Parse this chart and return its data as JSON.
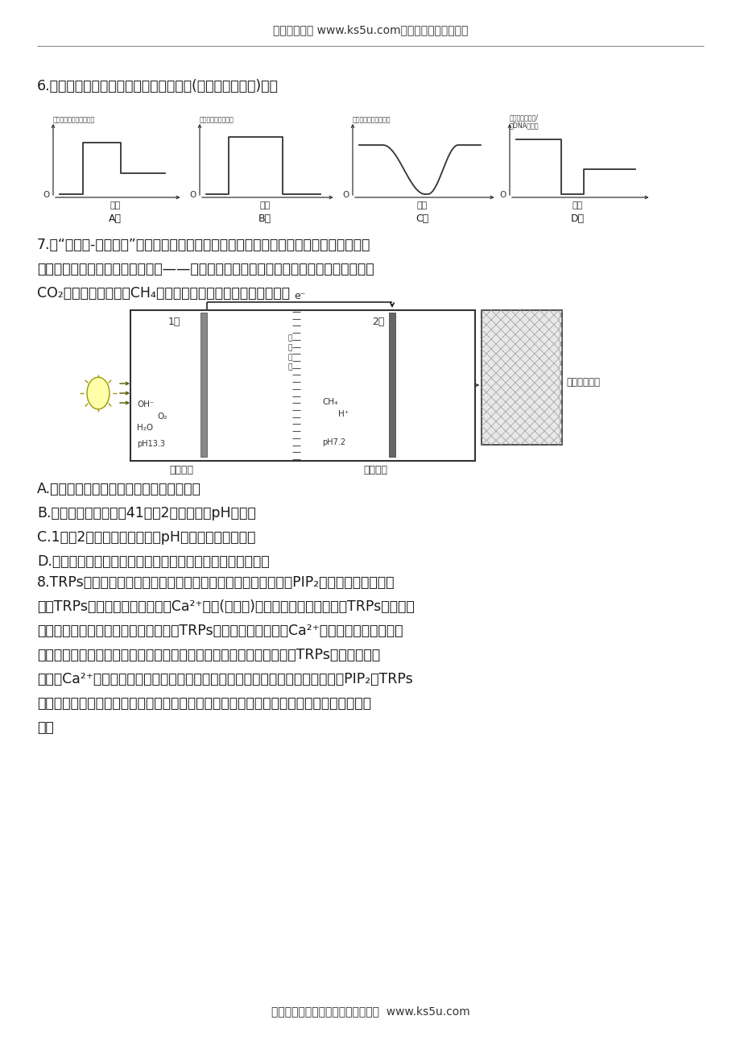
{
  "header_text": "高考资源网（ www.ks5u.com），您身边的高考专家",
  "footer_text": "欢迎广大教师踊跃来稿，稿酬丰厚。  www.ks5u.com",
  "q6_text": "6.下列图示中只能用来表示有丝分裂过程(可表示部分过程)的是",
  "q6_A_ylabel": "细胞内中心体数量相对値",
  "q6_B_ylabel": "细胞中染色单体数量",
  "q6_C_ylabel": "细胞中核膜面积相对値",
  "q6_D_ylabel1": "细胞内染色体数/",
  "q6_D_ylabel2": "核DNA分子数",
  "q6_xlabel": "时期",
  "q6_labels": [
    "A．",
    "B．",
    "C．",
    "D．"
  ],
  "q7_text1": "7.在“微生物-光电复合”人工光合作用系统中，光电阳极首先利用太阳能来产生还原性物",
  "q7_text2": "质，然后位于光电阴极上的微生物——产甲烷杆菌利用这些还原性物质作为电子供体，将",
  "q7_text3": "CO₂还原成有机化合物CH₄，如图所示。下列相关叙述错误的是",
  "q7_A": "A.该体系中的产甲烷杆菌应属于自养型生物",
  "q7_B": "B.该研究还需严格控制41室和2室的温度、pH等条件",
  "q7_C": "C.1室和2室完成相关反应后，pH均会发生明显的变化",
  "q7_D": "D.光电阳极和光电阴极发生的反应分别类似于光反应和暗反应",
  "q8_text1": "8.TRPs通道是主要位于神经细胞膜上的离子通道。细胞内的脂质PIP₂可以活化感觉神经元",
  "q8_text2": "上的TRPs通道，使其开放后引起Ca²⁺内流(如下图)，参与疼痛的信号传递。TRPs通道介导",
  "q8_text3": "疼痛产生的机制有两种假说，假说一：TRPs通道开放后，内流的Ca²⁺引起细胞膜电位变化，",
  "q8_text4": "并以电信号形式在细胞间直接传递，直至神经中枢产生痛觉；假说二：TRPs通道开放后，",
  "q8_text5": "内流的Ca²⁺引起神经递质释放，产生兴奋并传递，直至神经中枢产生痛觉。研究PIP₂对TRPs",
  "q8_text6": "通道活性调节机制，可为临床上缓解病人疼痛提供新思路。下列对材料的分析叙述，不合理",
  "q8_text7": "的是",
  "bg_color": "#ffffff",
  "text_color": "#000000",
  "line_color": "#333333"
}
